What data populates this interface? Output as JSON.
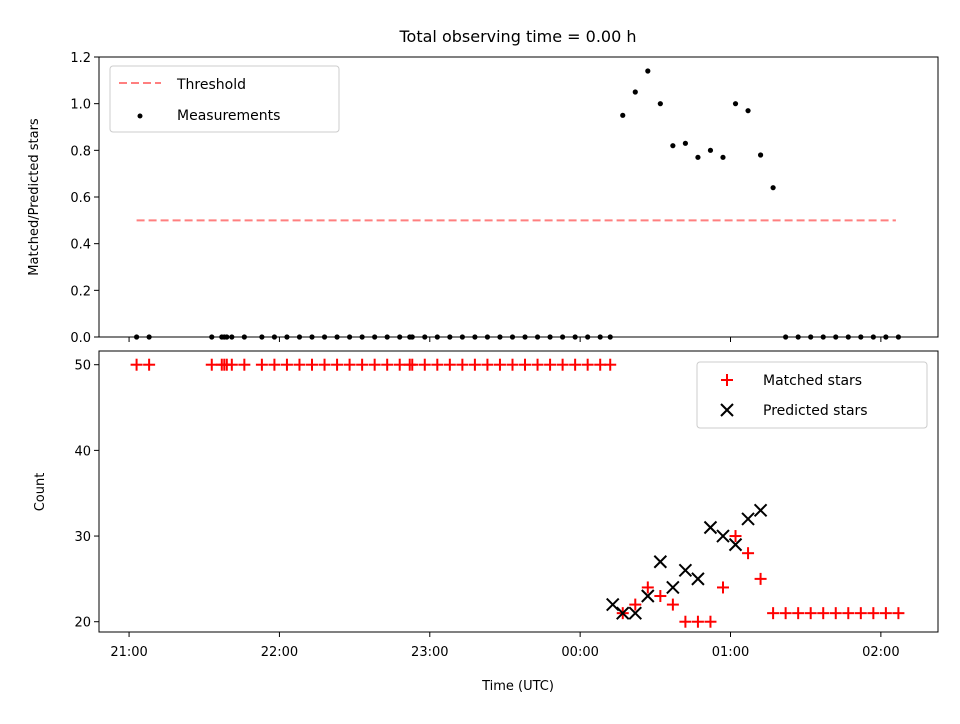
{
  "title": "Total observing time = 0.00 h",
  "x_axis": {
    "label": "Time (UTC)",
    "ticks": [
      "21:00",
      "22:00",
      "23:00",
      "00:00",
      "01:00",
      "02:00"
    ],
    "tick_hours": [
      21,
      22,
      23,
      24,
      25,
      26
    ],
    "range_hours": [
      20.8,
      26.38
    ]
  },
  "chart_data": [
    {
      "type": "line+scatter",
      "panel": "top",
      "ylabel": "Matched/Predicted stars",
      "ylim": [
        0,
        1.2
      ],
      "yticks": [
        "0.0",
        "0.2",
        "0.4",
        "0.6",
        "0.8",
        "1.0",
        "1.2"
      ],
      "yticks_values": [
        0,
        0.2,
        0.4,
        0.6,
        0.8,
        1.0,
        1.2
      ],
      "legend_position": "upper-left",
      "threshold": {
        "name": "Threshold",
        "value": 0.5,
        "x_start": "21:03",
        "x_end": "02:06",
        "color": "#ff7f7f",
        "style": "dashed"
      },
      "measurements": {
        "name": "Measurements",
        "color": "#000000",
        "x": [
          "21:03",
          "21:08",
          "21:33",
          "21:37",
          "21:38",
          "21:39",
          "21:41",
          "21:46",
          "21:53",
          "21:58",
          "22:03",
          "22:08",
          "22:13",
          "22:18",
          "22:23",
          "22:28",
          "22:33",
          "22:38",
          "22:43",
          "22:48",
          "22:52",
          "22:53",
          "22:58",
          "23:03",
          "23:08",
          "23:13",
          "23:18",
          "23:23",
          "23:28",
          "23:33",
          "23:38",
          "23:43",
          "23:48",
          "23:53",
          "23:58",
          "00:03",
          "00:08",
          "00:12",
          "00:17",
          "00:22",
          "00:27",
          "00:32",
          "00:37",
          "00:42",
          "00:47",
          "00:52",
          "00:57",
          "01:02",
          "01:07",
          "01:12",
          "01:17",
          "01:22",
          "01:27",
          "01:32",
          "01:37",
          "01:42",
          "01:47",
          "01:52",
          "01:57",
          "02:02",
          "02:07"
        ],
        "y": [
          0,
          0,
          0,
          0,
          0,
          0,
          0,
          0,
          0,
          0,
          0,
          0,
          0,
          0,
          0,
          0,
          0,
          0,
          0,
          0,
          0,
          0,
          0,
          0,
          0,
          0,
          0,
          0,
          0,
          0,
          0,
          0,
          0,
          0,
          0,
          0,
          0,
          0,
          0.95,
          1.05,
          1.14,
          1.0,
          0.82,
          0.83,
          0.77,
          0.8,
          0.77,
          1.0,
          0.97,
          0.78,
          0.64,
          0,
          0,
          0,
          0,
          0,
          0,
          0,
          0,
          0,
          0
        ]
      }
    },
    {
      "type": "scatter",
      "panel": "bottom",
      "ylabel": "Count",
      "ylim": [
        18.8,
        51.6
      ],
      "yticks": [
        "20",
        "30",
        "40",
        "50"
      ],
      "yticks_values": [
        20,
        30,
        40,
        50
      ],
      "legend_position": "upper-right",
      "series": [
        {
          "name": "Matched stars",
          "marker": "plus",
          "color": "#ff0000",
          "x": [
            "21:03",
            "21:08",
            "21:33",
            "21:37",
            "21:38",
            "21:39",
            "21:41",
            "21:46",
            "21:53",
            "21:58",
            "22:03",
            "22:08",
            "22:13",
            "22:18",
            "22:23",
            "22:28",
            "22:33",
            "22:38",
            "22:43",
            "22:48",
            "22:52",
            "22:53",
            "22:58",
            "23:03",
            "23:08",
            "23:13",
            "23:18",
            "23:23",
            "23:28",
            "23:33",
            "23:38",
            "23:43",
            "23:48",
            "23:53",
            "23:58",
            "00:03",
            "00:08",
            "00:12",
            "00:17",
            "00:22",
            "00:27",
            "00:32",
            "00:37",
            "00:42",
            "00:47",
            "00:52",
            "00:57",
            "01:02",
            "01:07",
            "01:12",
            "01:17",
            "01:22",
            "01:27",
            "01:32",
            "01:37",
            "01:42",
            "01:47",
            "01:52",
            "01:57",
            "02:02",
            "02:07"
          ],
          "y": [
            50,
            50,
            50,
            50,
            50,
            50,
            50,
            50,
            50,
            50,
            50,
            50,
            50,
            50,
            50,
            50,
            50,
            50,
            50,
            50,
            50,
            50,
            50,
            50,
            50,
            50,
            50,
            50,
            50,
            50,
            50,
            50,
            50,
            50,
            50,
            50,
            50,
            50,
            21,
            22,
            24,
            23,
            22,
            20,
            20,
            20,
            24,
            30,
            28,
            25,
            21,
            21,
            21,
            21,
            21,
            21,
            21,
            21,
            21,
            21,
            21
          ]
        },
        {
          "name": "Predicted stars",
          "marker": "x",
          "color": "#000000",
          "x": [
            "00:13",
            "00:17",
            "00:22",
            "00:27",
            "00:32",
            "00:37",
            "00:42",
            "00:47",
            "00:52",
            "00:57",
            "01:02",
            "01:07",
            "01:12"
          ],
          "y": [
            22,
            21,
            21,
            23,
            27,
            24,
            26,
            25,
            31,
            30,
            29,
            32,
            33
          ]
        }
      ]
    }
  ]
}
